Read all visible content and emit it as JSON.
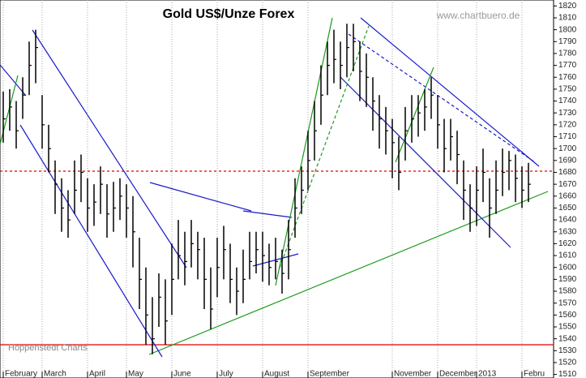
{
  "chart_data": {
    "type": "ohlc",
    "title": "Gold US$/Unze Forex",
    "source": "www.chartbuero.de",
    "credit": "Hoppenstedt Charts",
    "color": "#000000",
    "categories": [
      null,
      null,
      null,
      null,
      null,
      null,
      null,
      null,
      null,
      null,
      null,
      null,
      null,
      null,
      null,
      null,
      null,
      null,
      null,
      null,
      null,
      null,
      null,
      null,
      null,
      null,
      null,
      null,
      null,
      null,
      null,
      null,
      null,
      null,
      null,
      null,
      null,
      null,
      null,
      null,
      null,
      null,
      null,
      null,
      null,
      null,
      null,
      null,
      null,
      null,
      null,
      null,
      null,
      null,
      null,
      null,
      null,
      null,
      null,
      null,
      null,
      null,
      null,
      null,
      null,
      null,
      null,
      null,
      null,
      null,
      null,
      null,
      null,
      null,
      null,
      null,
      null,
      null,
      null,
      null,
      null,
      null
    ],
    "high": [
      1748,
      1750,
      1740,
      1760,
      1790,
      1800,
      1745,
      1720,
      1690,
      1675,
      1665,
      1690,
      1695,
      1675,
      1670,
      1685,
      1670,
      1672,
      1675,
      1670,
      1660,
      1625,
      1600,
      1575,
      1595,
      1590,
      1620,
      1640,
      1630,
      1640,
      1630,
      1625,
      1600,
      1625,
      1635,
      1620,
      1600,
      1615,
      1630,
      1630,
      1630,
      1620,
      1625,
      1615,
      1640,
      1675,
      1685,
      1715,
      1740,
      1770,
      1790,
      1800,
      1790,
      1805,
      1805,
      1790,
      1780,
      1760,
      1745,
      1735,
      1725,
      1710,
      1735,
      1745,
      1745,
      1750,
      1760,
      1745,
      1725,
      1725,
      1715,
      1690,
      1670,
      1685,
      1700,
      1675,
      1690,
      1700,
      1698,
      1695,
      1685,
      1688
    ],
    "low": [
      1705,
      1715,
      1700,
      1725,
      1745,
      1755,
      1700,
      1680,
      1645,
      1630,
      1625,
      1645,
      1655,
      1630,
      1635,
      1645,
      1625,
      1630,
      1640,
      1625,
      1600,
      1565,
      1535,
      1527,
      1550,
      1535,
      1560,
      1590,
      1585,
      1600,
      1590,
      1565,
      1548,
      1575,
      1590,
      1570,
      1560,
      1570,
      1590,
      1595,
      1588,
      1585,
      1590,
      1578,
      1590,
      1625,
      1645,
      1665,
      1690,
      1720,
      1745,
      1755,
      1750,
      1760,
      1765,
      1740,
      1735,
      1715,
      1700,
      1695,
      1675,
      1665,
      1690,
      1705,
      1710,
      1715,
      1725,
      1700,
      1680,
      1690,
      1670,
      1640,
      1630,
      1635,
      1655,
      1625,
      1645,
      1660,
      1665,
      1655,
      1650,
      1655
    ],
    "close": [
      1725,
      1735,
      1715,
      1745,
      1770,
      1785,
      1720,
      1700,
      1670,
      1650,
      1640,
      1665,
      1680,
      1650,
      1655,
      1670,
      1645,
      1650,
      1660,
      1650,
      1630,
      1590,
      1560,
      1540,
      1575,
      1555,
      1590,
      1610,
      1605,
      1620,
      1615,
      1590,
      1565,
      1600,
      1615,
      1590,
      1580,
      1590,
      1605,
      1615,
      1610,
      1600,
      1605,
      1595,
      1615,
      1650,
      1665,
      1690,
      1715,
      1745,
      1770,
      1775,
      1770,
      1785,
      1790,
      1765,
      1760,
      1740,
      1725,
      1715,
      1705,
      1680,
      1715,
      1725,
      1730,
      1735,
      1745,
      1720,
      1700,
      1710,
      1695,
      1665,
      1650,
      1665,
      1680,
      1650,
      1665,
      1680,
      1690,
      1675,
      1665,
      1670
    ],
    "hlines": [
      {
        "value": 1535,
        "color": "#e00000",
        "style": "solid"
      },
      {
        "value": 1681,
        "color": "#e00000",
        "style": "dashed"
      }
    ],
    "ylim": [
      1507,
      1825
    ],
    "yticks": [
      1510,
      1520,
      1530,
      1540,
      1550,
      1560,
      1570,
      1580,
      1590,
      1600,
      1610,
      1620,
      1630,
      1640,
      1650,
      1660,
      1670,
      1680,
      1690,
      1700,
      1710,
      1720,
      1730,
      1740,
      1750,
      1760,
      1770,
      1780,
      1790,
      1800,
      1810,
      1820
    ],
    "xticks": [
      {
        "value": 0,
        "label": "February"
      },
      {
        "value": 6,
        "label": "March"
      },
      {
        "value": 13,
        "label": "April"
      },
      {
        "value": 19,
        "label": "May"
      },
      {
        "value": 26,
        "label": "June"
      },
      {
        "value": 33,
        "label": "July"
      },
      {
        "value": 40,
        "label": "August"
      },
      {
        "value": 47,
        "label": "September"
      },
      {
        "value": 60,
        "label": "November"
      },
      {
        "value": 67,
        "label": "December"
      },
      {
        "value": 73,
        "label": "2013"
      },
      {
        "value": 80,
        "label": "Febru"
      }
    ],
    "grid": true
  }
}
